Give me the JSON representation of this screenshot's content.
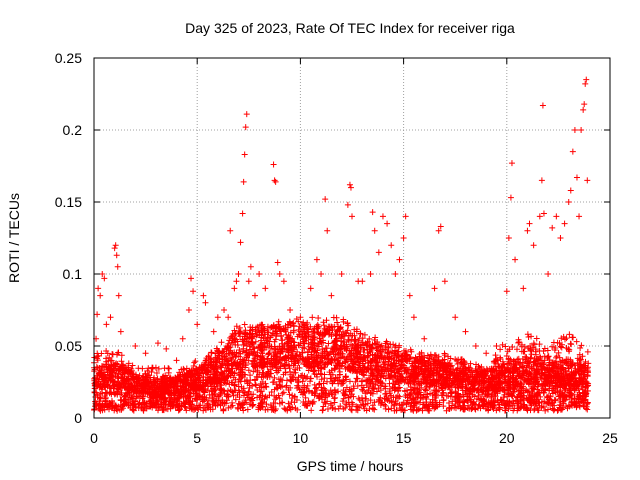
{
  "chart_data": {
    "type": "scatter",
    "title": "Day 325 of 2023, Rate Of TEC Index for receiver riga",
    "xlabel": "GPS time / hours",
    "ylabel": "ROTI / TECUs",
    "xlim": [
      0,
      25
    ],
    "ylim": [
      0,
      0.25
    ],
    "x_ticks": [
      0,
      5,
      10,
      15,
      20,
      25
    ],
    "y_ticks": [
      0,
      0.05,
      0.1,
      0.15,
      0.2,
      0.25
    ],
    "x_tick_labels": [
      "0",
      "5",
      "10",
      "15",
      "20",
      "25"
    ],
    "y_tick_labels": [
      "0",
      "0.05",
      "0.1",
      "0.15",
      "0.2",
      "0.25"
    ],
    "grid": true,
    "marker": "+",
    "colors": {
      "points": "#ff0000",
      "grid": "#a0a0a0",
      "axes": "#000000"
    },
    "series": [
      {
        "values": [
          [
            0.1,
            0.055
          ],
          [
            0.15,
            0.072
          ],
          [
            0.2,
            0.09
          ],
          [
            0.3,
            0.085
          ],
          [
            0.4,
            0.1
          ],
          [
            0.5,
            0.097
          ],
          [
            0.6,
            0.065
          ],
          [
            0.8,
            0.07
          ],
          [
            1.0,
            0.118
          ],
          [
            1.05,
            0.12
          ],
          [
            1.1,
            0.113
          ],
          [
            1.15,
            0.105
          ],
          [
            1.2,
            0.085
          ],
          [
            1.3,
            0.06
          ],
          [
            2.0,
            0.05
          ],
          [
            2.5,
            0.045
          ],
          [
            3.0,
            0.035
          ],
          [
            3.1,
            0.052
          ],
          [
            3.5,
            0.048
          ],
          [
            4.0,
            0.04
          ],
          [
            4.3,
            0.055
          ],
          [
            4.6,
            0.075
          ],
          [
            4.7,
            0.097
          ],
          [
            4.8,
            0.088
          ],
          [
            5.0,
            0.065
          ],
          [
            5.3,
            0.085
          ],
          [
            5.4,
            0.08
          ],
          [
            5.8,
            0.06
          ],
          [
            6.0,
            0.07
          ],
          [
            6.3,
            0.075
          ],
          [
            6.5,
            0.07
          ],
          [
            6.6,
            0.13
          ],
          [
            6.8,
            0.09
          ],
          [
            6.9,
            0.095
          ],
          [
            7.0,
            0.1
          ],
          [
            7.1,
            0.122
          ],
          [
            7.2,
            0.142
          ],
          [
            7.25,
            0.164
          ],
          [
            7.3,
            0.183
          ],
          [
            7.35,
            0.202
          ],
          [
            7.4,
            0.211
          ],
          [
            7.5,
            0.095
          ],
          [
            7.6,
            0.105
          ],
          [
            7.8,
            0.085
          ],
          [
            8.0,
            0.1
          ],
          [
            8.3,
            0.09
          ],
          [
            8.7,
            0.176
          ],
          [
            8.75,
            0.165
          ],
          [
            8.8,
            0.164
          ],
          [
            8.9,
            0.108
          ],
          [
            9.0,
            0.1
          ],
          [
            9.2,
            0.095
          ],
          [
            9.5,
            0.075
          ],
          [
            10.0,
            0.07
          ],
          [
            10.5,
            0.09
          ],
          [
            10.8,
            0.11
          ],
          [
            11.0,
            0.1
          ],
          [
            11.2,
            0.152
          ],
          [
            11.3,
            0.13
          ],
          [
            11.5,
            0.085
          ],
          [
            12.0,
            0.1
          ],
          [
            12.3,
            0.148
          ],
          [
            12.4,
            0.162
          ],
          [
            12.45,
            0.16
          ],
          [
            12.5,
            0.14
          ],
          [
            12.8,
            0.095
          ],
          [
            13.0,
            0.095
          ],
          [
            13.4,
            0.1
          ],
          [
            13.5,
            0.143
          ],
          [
            13.6,
            0.13
          ],
          [
            13.8,
            0.115
          ],
          [
            14.0,
            0.14
          ],
          [
            14.2,
            0.135
          ],
          [
            14.4,
            0.12
          ],
          [
            14.6,
            0.1
          ],
          [
            14.8,
            0.11
          ],
          [
            15.0,
            0.125
          ],
          [
            15.1,
            0.14
          ],
          [
            15.3,
            0.085
          ],
          [
            15.5,
            0.07
          ],
          [
            16.0,
            0.055
          ],
          [
            16.5,
            0.09
          ],
          [
            16.7,
            0.13
          ],
          [
            16.8,
            0.133
          ],
          [
            17.0,
            0.095
          ],
          [
            17.5,
            0.07
          ],
          [
            18.0,
            0.06
          ],
          [
            18.5,
            0.05
          ],
          [
            19.0,
            0.045
          ],
          [
            19.5,
            0.05
          ],
          [
            20.0,
            0.088
          ],
          [
            20.1,
            0.125
          ],
          [
            20.2,
            0.153
          ],
          [
            20.25,
            0.177
          ],
          [
            20.4,
            0.11
          ],
          [
            20.8,
            0.09
          ],
          [
            21.0,
            0.13
          ],
          [
            21.1,
            0.135
          ],
          [
            21.3,
            0.12
          ],
          [
            21.6,
            0.14
          ],
          [
            21.7,
            0.165
          ],
          [
            21.75,
            0.217
          ],
          [
            21.8,
            0.142
          ],
          [
            22.0,
            0.1
          ],
          [
            22.2,
            0.132
          ],
          [
            22.4,
            0.14
          ],
          [
            22.6,
            0.125
          ],
          [
            22.8,
            0.135
          ],
          [
            23.0,
            0.15
          ],
          [
            23.1,
            0.158
          ],
          [
            23.2,
            0.185
          ],
          [
            23.3,
            0.2
          ],
          [
            23.4,
            0.167
          ],
          [
            23.5,
            0.14
          ],
          [
            23.6,
            0.2
          ],
          [
            23.7,
            0.214
          ],
          [
            23.75,
            0.218
          ],
          [
            23.8,
            0.232
          ],
          [
            23.85,
            0.235
          ],
          [
            23.9,
            0.165
          ]
        ],
        "baseline_envelope": {
          "hours": [
            0,
            1,
            2,
            3,
            4,
            5,
            6,
            7,
            8,
            9,
            10,
            11,
            12,
            13,
            14,
            15,
            16,
            17,
            18,
            19,
            20,
            21,
            22,
            23,
            24
          ],
          "typical_roti": [
            0.02,
            0.022,
            0.018,
            0.016,
            0.017,
            0.02,
            0.025,
            0.032,
            0.035,
            0.036,
            0.036,
            0.035,
            0.034,
            0.03,
            0.028,
            0.026,
            0.024,
            0.022,
            0.02,
            0.019,
            0.022,
            0.024,
            0.022,
            0.023,
            0.02
          ],
          "spread_max": [
            0.045,
            0.05,
            0.035,
            0.035,
            0.035,
            0.04,
            0.05,
            0.065,
            0.065,
            0.065,
            0.07,
            0.07,
            0.07,
            0.06,
            0.055,
            0.05,
            0.045,
            0.045,
            0.04,
            0.035,
            0.055,
            0.06,
            0.05,
            0.06,
            0.045
          ],
          "point_count": 5000
        }
      }
    ]
  }
}
